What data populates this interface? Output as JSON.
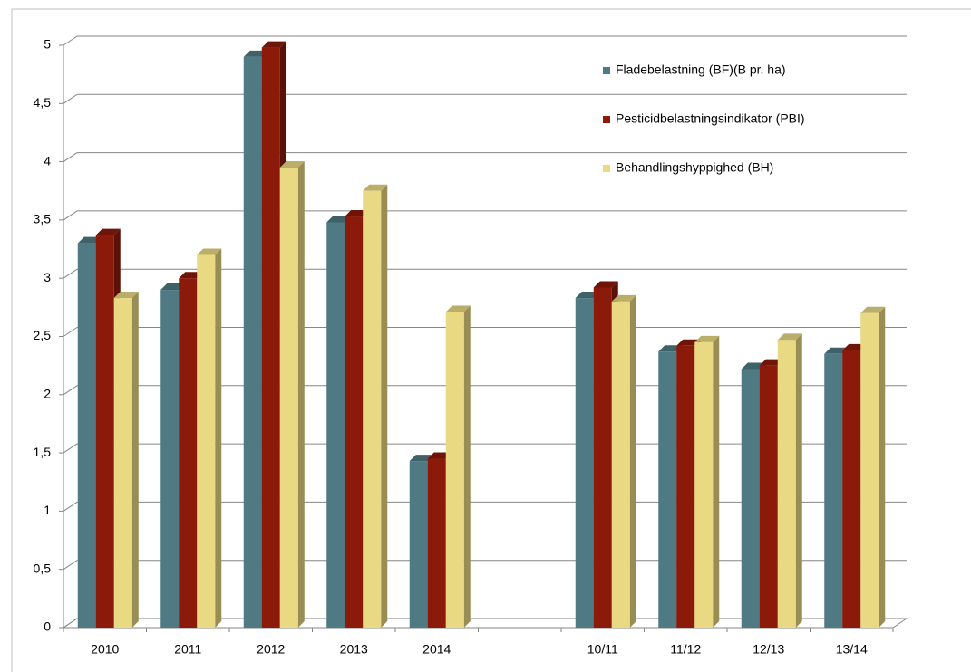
{
  "chart_data": {
    "type": "bar3d",
    "categories": [
      "2010",
      "2011",
      "2012",
      "2013",
      "2014",
      null,
      "10/11",
      "11/12",
      "12/13",
      "13/14"
    ],
    "series": [
      {
        "name": "Fladebelastning (BF)(B pr. ha)",
        "color": "#4f7a83",
        "values": [
          3.3,
          2.9,
          4.9,
          3.48,
          1.43,
          null,
          2.83,
          2.37,
          2.22,
          2.35
        ]
      },
      {
        "name": "Pesticidbelastningsindikator (PBI)",
        "color": "#8b1a0a",
        "values": [
          3.37,
          3.0,
          4.98,
          3.53,
          1.45,
          null,
          2.92,
          2.42,
          2.25,
          2.38
        ]
      },
      {
        "name": "Behandlingshyppighed (BH)",
        "color": "#e8d982",
        "values": [
          2.83,
          3.2,
          3.95,
          3.75,
          2.71,
          null,
          2.8,
          2.45,
          2.47,
          2.7
        ]
      }
    ],
    "ylim": [
      0,
      5
    ],
    "yticks": [
      0,
      {
        "value": 0.5,
        "label": "0,5"
      },
      1,
      {
        "value": 1.5,
        "label": "1,5"
      },
      2,
      {
        "value": 2.5,
        "label": "2,5"
      },
      3,
      {
        "value": 3.5,
        "label": "3,5"
      },
      4,
      {
        "value": 4.5,
        "label": "4,5"
      },
      5
    ],
    "grid": true,
    "legend": "top-right"
  }
}
